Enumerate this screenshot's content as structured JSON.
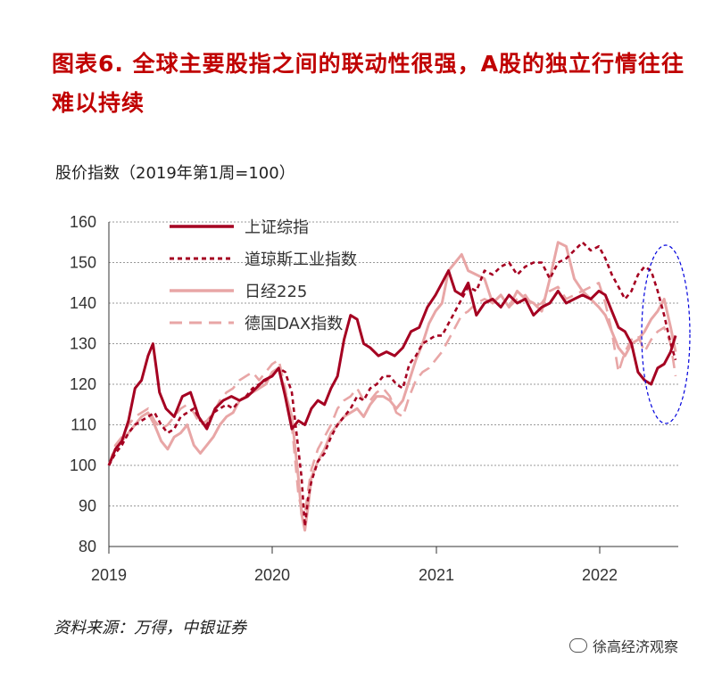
{
  "title": "图表6.  全球主要股指之间的联动性很强，A股的独立行情往往难以持续",
  "unit_label": "股价指数（2019年第1周=100）",
  "source": "资料来源：万得，中银证券",
  "watermark": "徐高经济观察",
  "colors": {
    "sse": "#a50021",
    "dow": "#a50021",
    "nikkei": "#e8a6a6",
    "dax": "#e8a6a6",
    "ellipse": "#0000dd",
    "title": "#c00000"
  },
  "chart_data": {
    "type": "line",
    "ylim": [
      80,
      160
    ],
    "yticks": [
      80,
      90,
      100,
      110,
      120,
      130,
      140,
      150,
      160
    ],
    "xticks": [
      "2019",
      "2020",
      "2021",
      "2022"
    ],
    "xlim": [
      2019.0,
      2022.48
    ],
    "legend_position": "top-left",
    "series": [
      {
        "name": "上证综指",
        "style": "solid-dark",
        "x": [
          2019.0,
          2019.04,
          2019.08,
          2019.12,
          2019.16,
          2019.2,
          2019.24,
          2019.27,
          2019.29,
          2019.31,
          2019.35,
          2019.4,
          2019.45,
          2019.5,
          2019.55,
          2019.6,
          2019.65,
          2019.7,
          2019.75,
          2019.8,
          2019.85,
          2019.9,
          2019.95,
          2020.0,
          2020.04,
          2020.08,
          2020.12,
          2020.16,
          2020.2,
          2020.22,
          2020.24,
          2020.28,
          2020.32,
          2020.36,
          2020.4,
          2020.44,
          2020.48,
          2020.52,
          2020.54,
          2020.56,
          2020.6,
          2020.65,
          2020.7,
          2020.75,
          2020.8,
          2020.85,
          2020.9,
          2020.95,
          2021.0,
          2021.04,
          2021.08,
          2021.12,
          2021.16,
          2021.2,
          2021.25,
          2021.3,
          2021.35,
          2021.4,
          2021.45,
          2021.5,
          2021.55,
          2021.6,
          2021.65,
          2021.7,
          2021.75,
          2021.8,
          2021.85,
          2021.9,
          2021.95,
          2022.0,
          2022.04,
          2022.08,
          2022.12,
          2022.16,
          2022.2,
          2022.24,
          2022.28,
          2022.32,
          2022.36,
          2022.4,
          2022.44,
          2022.47
        ],
        "y": [
          100,
          104,
          106,
          111,
          119,
          121,
          127,
          130,
          124,
          118,
          114,
          112,
          117,
          118,
          112,
          109,
          114,
          116,
          117,
          116,
          117,
          119,
          121,
          122,
          124,
          117,
          109,
          111,
          110,
          112,
          114,
          116,
          115,
          119,
          122,
          131,
          137,
          136,
          133,
          130,
          129,
          127,
          128,
          127,
          129,
          133,
          134,
          139,
          142,
          145,
          148,
          143,
          142,
          145,
          137,
          140,
          141,
          139,
          142,
          140,
          141,
          137,
          139,
          140,
          143,
          140,
          141,
          142,
          141,
          143,
          142,
          138,
          134,
          133,
          130,
          123,
          121,
          120,
          124,
          125,
          128,
          132
        ]
      },
      {
        "name": "道琼斯工业指数",
        "style": "dashed-dark",
        "x": [
          2019.0,
          2019.04,
          2019.08,
          2019.12,
          2019.16,
          2019.2,
          2019.24,
          2019.28,
          2019.32,
          2019.36,
          2019.4,
          2019.44,
          2019.48,
          2019.52,
          2019.56,
          2019.6,
          2019.64,
          2019.68,
          2019.72,
          2019.76,
          2019.8,
          2019.84,
          2019.88,
          2019.92,
          2019.96,
          2020.0,
          2020.04,
          2020.08,
          2020.12,
          2020.16,
          2020.18,
          2020.2,
          2020.22,
          2020.24,
          2020.28,
          2020.32,
          2020.36,
          2020.4,
          2020.44,
          2020.48,
          2020.52,
          2020.56,
          2020.6,
          2020.64,
          2020.68,
          2020.72,
          2020.76,
          2020.8,
          2020.84,
          2020.88,
          2020.92,
          2020.96,
          2021.0,
          2021.04,
          2021.08,
          2021.12,
          2021.16,
          2021.2,
          2021.25,
          2021.3,
          2021.35,
          2021.4,
          2021.45,
          2021.5,
          2021.55,
          2021.6,
          2021.65,
          2021.7,
          2021.75,
          2021.8,
          2021.85,
          2021.9,
          2021.95,
          2022.0,
          2022.04,
          2022.08,
          2022.12,
          2022.16,
          2022.2,
          2022.24,
          2022.28,
          2022.32,
          2022.36,
          2022.4,
          2022.44,
          2022.47
        ],
        "y": [
          100,
          103,
          105,
          108,
          110,
          111,
          112,
          113,
          110,
          108,
          109,
          112,
          113,
          114,
          111,
          110,
          113,
          114,
          115,
          114,
          116,
          117,
          119,
          120,
          121,
          122,
          124,
          123,
          118,
          104,
          97,
          85,
          92,
          96,
          101,
          103,
          107,
          110,
          112,
          114,
          117,
          116,
          119,
          120,
          122,
          122,
          120,
          119,
          125,
          127,
          130,
          131,
          132,
          132,
          135,
          138,
          141,
          144,
          143,
          148,
          147,
          149,
          150,
          147,
          149,
          150,
          150,
          146,
          150,
          151,
          153,
          155,
          153,
          154,
          151,
          147,
          144,
          141,
          143,
          147,
          149,
          148,
          143,
          137,
          130,
          126
        ]
      },
      {
        "name": "日经225",
        "style": "solid-light",
        "x": [
          2019.0,
          2019.04,
          2019.08,
          2019.12,
          2019.16,
          2019.2,
          2019.24,
          2019.28,
          2019.32,
          2019.36,
          2019.4,
          2019.44,
          2019.48,
          2019.52,
          2019.56,
          2019.6,
          2019.64,
          2019.68,
          2019.72,
          2019.76,
          2019.8,
          2019.84,
          2019.88,
          2019.92,
          2019.96,
          2020.0,
          2020.04,
          2020.08,
          2020.12,
          2020.16,
          2020.18,
          2020.2,
          2020.22,
          2020.24,
          2020.28,
          2020.32,
          2020.36,
          2020.4,
          2020.44,
          2020.48,
          2020.52,
          2020.56,
          2020.6,
          2020.64,
          2020.68,
          2020.72,
          2020.76,
          2020.8,
          2020.84,
          2020.88,
          2020.92,
          2020.96,
          2021.0,
          2021.04,
          2021.08,
          2021.12,
          2021.16,
          2021.2,
          2021.25,
          2021.3,
          2021.35,
          2021.4,
          2021.45,
          2021.5,
          2021.55,
          2021.6,
          2021.65,
          2021.7,
          2021.75,
          2021.8,
          2021.85,
          2021.9,
          2021.95,
          2022.0,
          2022.04,
          2022.08,
          2022.12,
          2022.16,
          2022.2,
          2022.24,
          2022.28,
          2022.32,
          2022.36,
          2022.4,
          2022.44,
          2022.47
        ],
        "y": [
          100,
          104,
          106,
          108,
          110,
          112,
          113,
          110,
          106,
          104,
          107,
          108,
          110,
          105,
          103,
          105,
          107,
          110,
          112,
          113,
          116,
          117,
          118,
          119,
          120,
          123,
          124,
          118,
          112,
          97,
          88,
          84,
          90,
          97,
          101,
          104,
          108,
          110,
          112,
          113,
          114,
          112,
          115,
          117,
          117,
          116,
          114,
          116,
          121,
          126,
          130,
          135,
          138,
          140,
          148,
          150,
          152,
          148,
          147,
          146,
          140,
          142,
          139,
          143,
          141,
          140,
          138,
          146,
          155,
          154,
          146,
          143,
          141,
          139,
          137,
          133,
          129,
          127,
          130,
          131,
          133,
          136,
          138,
          141,
          134,
          128
        ]
      },
      {
        "name": "德国DAX指数",
        "style": "dashed-light",
        "x": [
          2019.0,
          2019.04,
          2019.08,
          2019.12,
          2019.16,
          2019.2,
          2019.24,
          2019.28,
          2019.32,
          2019.36,
          2019.4,
          2019.44,
          2019.48,
          2019.52,
          2019.56,
          2019.6,
          2019.64,
          2019.68,
          2019.72,
          2019.76,
          2019.8,
          2019.84,
          2019.88,
          2019.92,
          2019.96,
          2020.0,
          2020.04,
          2020.08,
          2020.12,
          2020.16,
          2020.18,
          2020.2,
          2020.22,
          2020.24,
          2020.28,
          2020.32,
          2020.36,
          2020.4,
          2020.44,
          2020.48,
          2020.52,
          2020.56,
          2020.6,
          2020.64,
          2020.68,
          2020.72,
          2020.76,
          2020.8,
          2020.84,
          2020.88,
          2020.92,
          2020.96,
          2021.0,
          2021.04,
          2021.08,
          2021.12,
          2021.16,
          2021.2,
          2021.25,
          2021.3,
          2021.35,
          2021.4,
          2021.45,
          2021.5,
          2021.55,
          2021.6,
          2021.65,
          2021.7,
          2021.75,
          2021.8,
          2021.85,
          2021.9,
          2021.95,
          2022.0,
          2022.04,
          2022.08,
          2022.12,
          2022.16,
          2022.2,
          2022.24,
          2022.28,
          2022.32,
          2022.36,
          2022.4,
          2022.44,
          2022.47
        ],
        "y": [
          100,
          105,
          107,
          110,
          112,
          113,
          114,
          111,
          109,
          110,
          112,
          114,
          115,
          113,
          110,
          111,
          113,
          116,
          118,
          119,
          121,
          122,
          123,
          121,
          123,
          125,
          126,
          119,
          110,
          93,
          89,
          88,
          94,
          99,
          104,
          107,
          110,
          114,
          116,
          117,
          119,
          116,
          116,
          118,
          119,
          117,
          113,
          112,
          117,
          121,
          123,
          124,
          126,
          128,
          131,
          134,
          137,
          138,
          140,
          141,
          140,
          142,
          139,
          141,
          142,
          139,
          140,
          143,
          144,
          141,
          142,
          143,
          144,
          145,
          140,
          133,
          123,
          128,
          131,
          132,
          128,
          131,
          133,
          134,
          130,
          122
        ]
      }
    ]
  },
  "legend": [
    "上证综指",
    "道琼斯工业指数",
    "日经225",
    "德国DAX指数"
  ]
}
